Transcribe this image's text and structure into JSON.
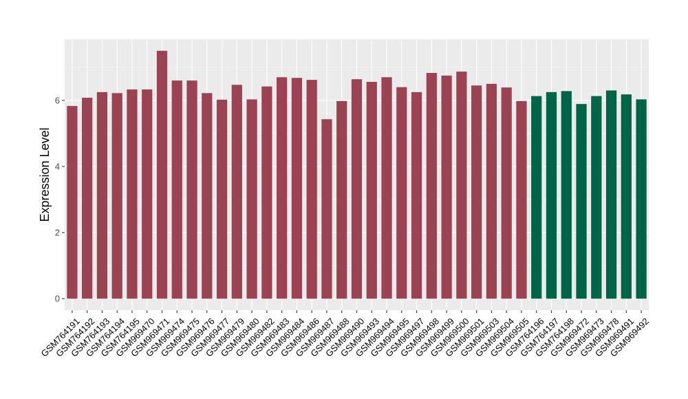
{
  "chart_data": {
    "type": "bar",
    "title": "",
    "xlabel": "",
    "ylabel": "Expression Level",
    "ylim": [
      -0.35,
      7.85
    ],
    "yticks": [
      0,
      2,
      4,
      6
    ],
    "grid": true,
    "legend": "none",
    "colors": {
      "panel_bg": "#ebebeb",
      "grid_major": "#ffffff",
      "series_a": "#9b4352",
      "series_b": "#006446"
    },
    "categories": [
      "GSM764191",
      "GSM764192",
      "GSM764193",
      "GSM764194",
      "GSM764195",
      "GSM969470",
      "GSM969471",
      "GSM969474",
      "GSM969475",
      "GSM969476",
      "GSM969477",
      "GSM969479",
      "GSM969480",
      "GSM969482",
      "GSM969483",
      "GSM969484",
      "GSM969486",
      "GSM969487",
      "GSM969488",
      "GSM969490",
      "GSM969493",
      "GSM969494",
      "GSM969495",
      "GSM969497",
      "GSM969498",
      "GSM969499",
      "GSM969500",
      "GSM969501",
      "GSM969503",
      "GSM969504",
      "GSM969505",
      "GSM764196",
      "GSM764197",
      "GSM764198",
      "GSM969472",
      "GSM969473",
      "GSM969478",
      "GSM969491",
      "GSM969492"
    ],
    "values": [
      5.83,
      6.08,
      6.25,
      6.22,
      6.33,
      6.33,
      7.5,
      6.6,
      6.6,
      6.22,
      6.02,
      6.47,
      6.03,
      6.42,
      6.7,
      6.68,
      6.62,
      5.43,
      5.98,
      6.64,
      6.56,
      6.7,
      6.4,
      6.25,
      6.83,
      6.75,
      6.87,
      6.45,
      6.5,
      6.39,
      5.98,
      6.13,
      6.25,
      6.28,
      5.89,
      6.13,
      6.3,
      6.18,
      6.03
    ],
    "groups": [
      "a",
      "a",
      "a",
      "a",
      "a",
      "a",
      "a",
      "a",
      "a",
      "a",
      "a",
      "a",
      "a",
      "a",
      "a",
      "a",
      "a",
      "a",
      "a",
      "a",
      "a",
      "a",
      "a",
      "a",
      "a",
      "a",
      "a",
      "a",
      "a",
      "a",
      "a",
      "b",
      "b",
      "b",
      "b",
      "b",
      "b",
      "b",
      "b"
    ]
  }
}
